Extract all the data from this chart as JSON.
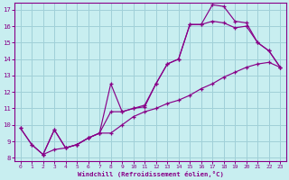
{
  "xlabel": "Windchill (Refroidissement éolien,°C)",
  "bg_color": "#c8eef0",
  "grid_color": "#a0d0d8",
  "line_color": "#880088",
  "xlim": [
    -0.5,
    23.5
  ],
  "ylim": [
    7.8,
    17.4
  ],
  "xticks": [
    0,
    1,
    2,
    3,
    4,
    5,
    6,
    7,
    8,
    9,
    10,
    11,
    12,
    13,
    14,
    15,
    16,
    17,
    18,
    19,
    20,
    21,
    22,
    23
  ],
  "yticks": [
    8,
    9,
    10,
    11,
    12,
    13,
    14,
    15,
    16,
    17
  ],
  "line1_x": [
    0,
    1,
    2,
    3,
    4,
    5,
    6,
    7,
    8,
    9,
    10,
    11,
    12,
    13,
    14,
    15,
    16,
    17,
    18,
    19,
    20,
    21,
    22,
    23
  ],
  "line1_y": [
    9.8,
    8.8,
    8.2,
    9.7,
    8.6,
    8.8,
    9.2,
    9.5,
    10.8,
    10.8,
    11.0,
    11.1,
    12.5,
    13.7,
    14.0,
    16.1,
    16.1,
    17.3,
    17.2,
    16.3,
    16.2,
    15.0,
    14.5,
    13.5
  ],
  "line2_x": [
    0,
    1,
    2,
    3,
    4,
    5,
    6,
    7,
    8,
    9,
    10,
    11,
    12,
    13,
    14,
    15,
    16,
    17,
    18,
    19,
    20,
    21,
    22,
    23
  ],
  "line2_y": [
    9.8,
    8.8,
    8.2,
    8.5,
    8.6,
    8.8,
    9.2,
    9.5,
    9.5,
    10.0,
    10.5,
    10.8,
    11.0,
    11.3,
    11.5,
    11.8,
    12.2,
    12.5,
    12.9,
    13.2,
    13.5,
    13.7,
    13.8,
    13.5
  ],
  "line3_x": [
    2,
    3,
    4,
    5,
    6,
    7,
    8,
    9,
    10,
    11,
    12,
    13,
    14,
    15,
    16,
    17,
    18,
    19,
    20,
    21,
    22,
    23
  ],
  "line3_y": [
    8.2,
    9.7,
    8.6,
    8.8,
    9.2,
    9.5,
    12.5,
    10.8,
    11.0,
    11.2,
    12.5,
    13.7,
    14.0,
    16.1,
    16.1,
    16.3,
    16.2,
    15.9,
    16.0,
    15.0,
    14.5,
    13.5
  ]
}
